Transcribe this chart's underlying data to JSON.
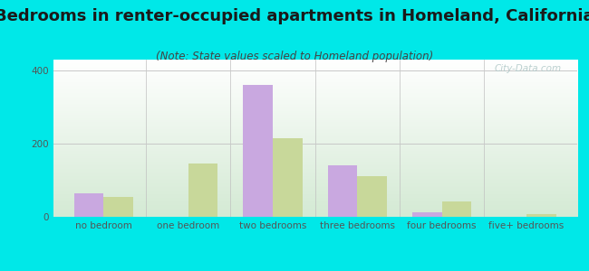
{
  "title": "Bedrooms in renter-occupied apartments in Homeland, California",
  "subtitle": "(Note: State values scaled to Homeland population)",
  "categories": [
    "no bedroom",
    "one bedroom",
    "two bedrooms",
    "three bedrooms",
    "four bedrooms",
    "five+ bedrooms"
  ],
  "homeland_values": [
    65,
    0,
    360,
    140,
    12,
    0
  ],
  "california_values": [
    55,
    145,
    215,
    110,
    42,
    8
  ],
  "homeland_color": "#c9a8e0",
  "california_color": "#c8d89a",
  "background_outer": "#00e8e8",
  "ylim": [
    0,
    430
  ],
  "yticks": [
    0,
    200,
    400
  ],
  "bar_width": 0.35,
  "title_fontsize": 13,
  "subtitle_fontsize": 8.5,
  "tick_fontsize": 7.5,
  "legend_fontsize": 9,
  "watermark_text": "City-Data.com",
  "watermark_color": "#b0c8c8"
}
